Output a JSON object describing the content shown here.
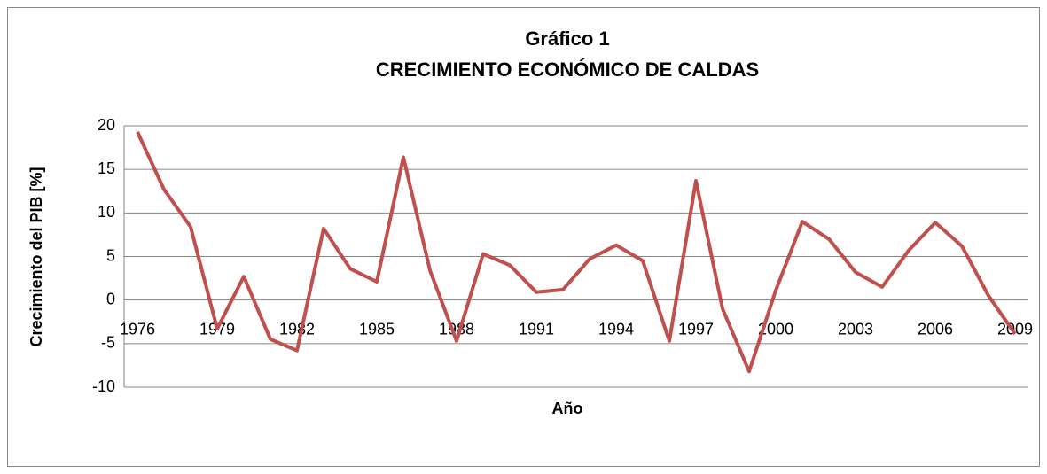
{
  "chart_data": {
    "type": "line",
    "title": "Gráfico 1",
    "subtitle": "CRECIMIENTO ECONÓMICO DE CALDAS",
    "x_label": "Año",
    "y_label": "Crecimiento del PIB [%]",
    "categories": [
      "1976",
      null,
      null,
      "1979",
      null,
      null,
      "1982",
      null,
      null,
      "1985",
      null,
      null,
      "1988",
      null,
      null,
      "1991",
      null,
      null,
      "1994",
      null,
      null,
      "1997",
      null,
      null,
      "2000",
      null,
      null,
      "2003",
      null,
      null,
      "2006",
      null,
      null,
      "2009"
    ],
    "series": [
      {
        "name": "Crecimiento del PIB",
        "color": "#c0504d",
        "values": [
          19.3,
          12.7,
          8.4,
          -3.3,
          2.7,
          -4.5,
          -5.8,
          8.2,
          3.6,
          2.1,
          16.4,
          3.4,
          -4.7,
          5.3,
          4.0,
          0.9,
          1.2,
          4.7,
          6.3,
          4.5,
          -4.7,
          13.7,
          -1.0,
          -8.2,
          1.1,
          9.0,
          7.0,
          3.2,
          1.5,
          5.7,
          8.9,
          6.2,
          0.5,
          -3.9
        ]
      }
    ],
    "ylim": [
      -10,
      20
    ],
    "yticks": [
      -10,
      -5,
      0,
      5,
      10,
      15,
      20
    ],
    "grid": true
  }
}
